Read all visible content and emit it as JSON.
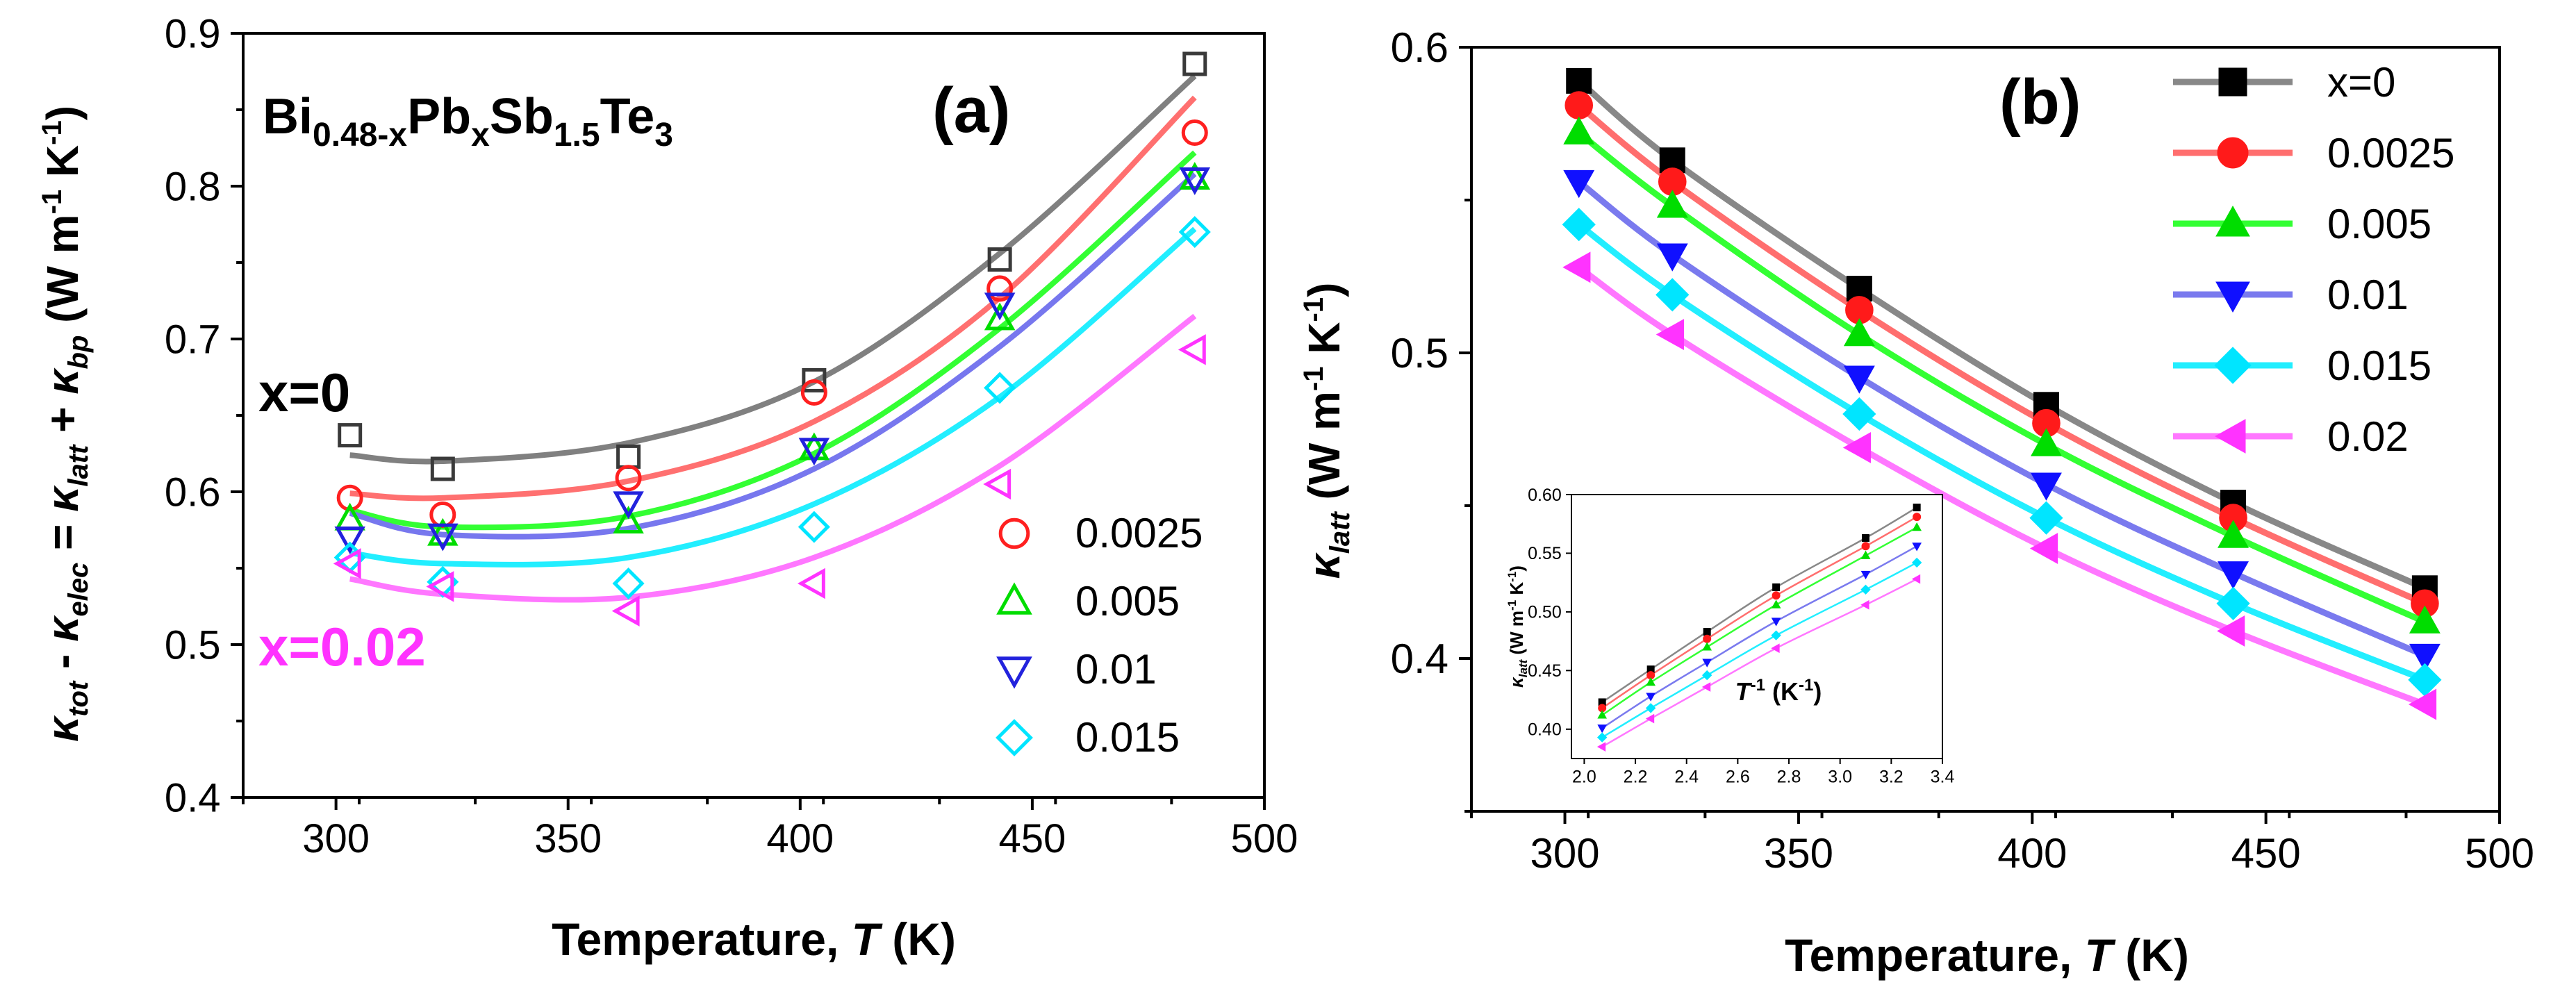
{
  "chart_data": [
    {
      "id": "a",
      "type": "scatter",
      "panel_label": "(a)",
      "title": "Bi0.48-xPbxSb1.5Te3",
      "title_parts": {
        "base1": "Bi",
        "sub1": "0.48-x",
        "base2": "Pb",
        "sub2": "x",
        "base3": "Sb",
        "sub3": "1.5",
        "base4": "Te",
        "sub4": "3"
      },
      "xlabel_text": "Temperature, ",
      "xlabel_var": "T",
      "xlabel_unit": " (K)",
      "ylabel_text": "κtot - κelec = κlatt + κbp (W m-1 K-1)",
      "xlim": [
        280,
        500
      ],
      "ylim": [
        0.4,
        0.9
      ],
      "xticks": [
        "300",
        "350",
        "400",
        "450",
        "500"
      ],
      "yticks": [
        "0.4",
        "0.5",
        "0.6",
        "0.7",
        "0.8",
        "0.9"
      ],
      "annotations": [
        "x=0",
        "x=0.02"
      ],
      "x": [
        303,
        323,
        363,
        403,
        443,
        485
      ],
      "series": [
        {
          "name": "x=0",
          "color": "#3a3a3a",
          "line_color": "#808080",
          "marker": "square-open",
          "values": [
            0.637,
            0.615,
            0.623,
            0.673,
            0.752,
            0.88
          ],
          "fit": [
            0.624,
            0.62,
            0.632,
            0.672,
            0.756,
            0.872
          ]
        },
        {
          "name": "0.0025",
          "color": "#ff2020",
          "line_color": "#ff7070",
          "marker": "circle-open",
          "values": [
            0.596,
            0.585,
            0.609,
            0.665,
            0.733,
            0.835
          ],
          "fit": [
            0.599,
            0.596,
            0.607,
            0.646,
            0.727,
            0.858
          ]
        },
        {
          "name": "0.005",
          "color": "#00dd00",
          "line_color": "#33ff33",
          "marker": "triangle-up-open",
          "values": [
            0.582,
            0.572,
            0.58,
            0.628,
            0.713,
            0.805
          ],
          "fit": [
            0.588,
            0.577,
            0.584,
            0.625,
            0.707,
            0.822
          ]
        },
        {
          "name": "0.01",
          "color": "#2222dd",
          "line_color": "#7777ee",
          "marker": "triangle-down-open",
          "values": [
            0.57,
            0.572,
            0.593,
            0.628,
            0.723,
            0.805
          ],
          "fit": [
            0.586,
            0.572,
            0.576,
            0.615,
            0.695,
            0.808
          ]
        },
        {
          "name": "0.015",
          "color": "#00e5ff",
          "line_color": "#22eeff",
          "marker": "diamond-open",
          "values": [
            0.557,
            0.541,
            0.54,
            0.577,
            0.668,
            0.77
          ],
          "fit": [
            0.56,
            0.553,
            0.557,
            0.592,
            0.662,
            0.772
          ]
        },
        {
          "name": "0.02",
          "color": "#ff33ff",
          "line_color": "#ff77ff",
          "marker": "triangle-left-open",
          "values": [
            0.553,
            0.538,
            0.522,
            0.54,
            0.605,
            0.693
          ],
          "fit": [
            0.543,
            0.533,
            0.531,
            0.557,
            0.617,
            0.715
          ]
        }
      ],
      "legend_entries": [
        "0.0025",
        "0.005",
        "0.01",
        "0.015"
      ]
    },
    {
      "id": "b",
      "type": "line",
      "panel_label": "(b)",
      "xlabel_text": "Temperature, ",
      "xlabel_var": "T",
      "xlabel_unit": " (K)",
      "ylabel_text": "κlatt (W m-1 K-1)",
      "xlim": [
        280,
        500
      ],
      "ylim": [
        0.35,
        0.6
      ],
      "xticks": [
        "300",
        "350",
        "400",
        "450",
        "500"
      ],
      "yticks": [
        "0.4",
        "0.5",
        "0.6"
      ],
      "x": [
        303,
        323,
        363,
        403,
        443,
        484
      ],
      "series": [
        {
          "name": "x=0",
          "color": "#000000",
          "line_color": "#888888",
          "marker": "square",
          "values": [
            0.589,
            0.563,
            0.521,
            0.483,
            0.451,
            0.423
          ]
        },
        {
          "name": "0.0025",
          "color": "#ff1a1a",
          "line_color": "#ff6e6e",
          "marker": "circle",
          "values": [
            0.581,
            0.556,
            0.514,
            0.477,
            0.446,
            0.418
          ]
        },
        {
          "name": "0.005",
          "color": "#00dd00",
          "line_color": "#33ff33",
          "marker": "triangle-up",
          "values": [
            0.572,
            0.548,
            0.506,
            0.47,
            0.44,
            0.412
          ]
        },
        {
          "name": "0.01",
          "color": "#1010ff",
          "line_color": "#7a7aee",
          "marker": "triangle-down",
          "values": [
            0.556,
            0.532,
            0.492,
            0.457,
            0.428,
            0.401
          ]
        },
        {
          "name": "0.015",
          "color": "#00e5ff",
          "line_color": "#22eeff",
          "marker": "diamond",
          "values": [
            0.542,
            0.519,
            0.48,
            0.446,
            0.418,
            0.393
          ]
        },
        {
          "name": "0.02",
          "color": "#ff33ff",
          "line_color": "#ff77ff",
          "marker": "triangle-left",
          "values": [
            0.528,
            0.506,
            0.469,
            0.436,
            0.409,
            0.385
          ]
        }
      ],
      "inset": {
        "type": "line",
        "xlabel_text": "T",
        "xlabel_sup": "-1",
        "xlabel_unit": " (K",
        "xlabel_unit_sup": "-1",
        "xlabel_close": ")",
        "ylabel_text": "κlatt (W m-1 K-1)",
        "xlim": [
          1.95,
          3.4
        ],
        "ylim": [
          0.375,
          0.6
        ],
        "xticks": [
          "2.0",
          "2.2",
          "2.4",
          "2.6",
          "2.8",
          "3.0",
          "3.2",
          "3.4"
        ],
        "yticks": [
          "0.40",
          "0.45",
          "0.50",
          "0.55",
          "0.60"
        ],
        "x": [
          2.07,
          2.26,
          2.48,
          2.75,
          3.1,
          3.3
        ],
        "series": [
          {
            "name": "x=0",
            "values": [
              0.423,
              0.451,
              0.483,
              0.521,
              0.563,
              0.589
            ]
          },
          {
            "name": "0.0025",
            "values": [
              0.418,
              0.446,
              0.477,
              0.514,
              0.556,
              0.581
            ]
          },
          {
            "name": "0.005",
            "values": [
              0.412,
              0.44,
              0.47,
              0.506,
              0.548,
              0.572
            ]
          },
          {
            "name": "0.01",
            "values": [
              0.401,
              0.428,
              0.457,
              0.492,
              0.532,
              0.556
            ]
          },
          {
            "name": "0.015",
            "values": [
              0.393,
              0.418,
              0.446,
              0.48,
              0.519,
              0.542
            ]
          },
          {
            "name": "0.02",
            "values": [
              0.385,
              0.409,
              0.436,
              0.469,
              0.506,
              0.528
            ]
          }
        ]
      }
    }
  ]
}
